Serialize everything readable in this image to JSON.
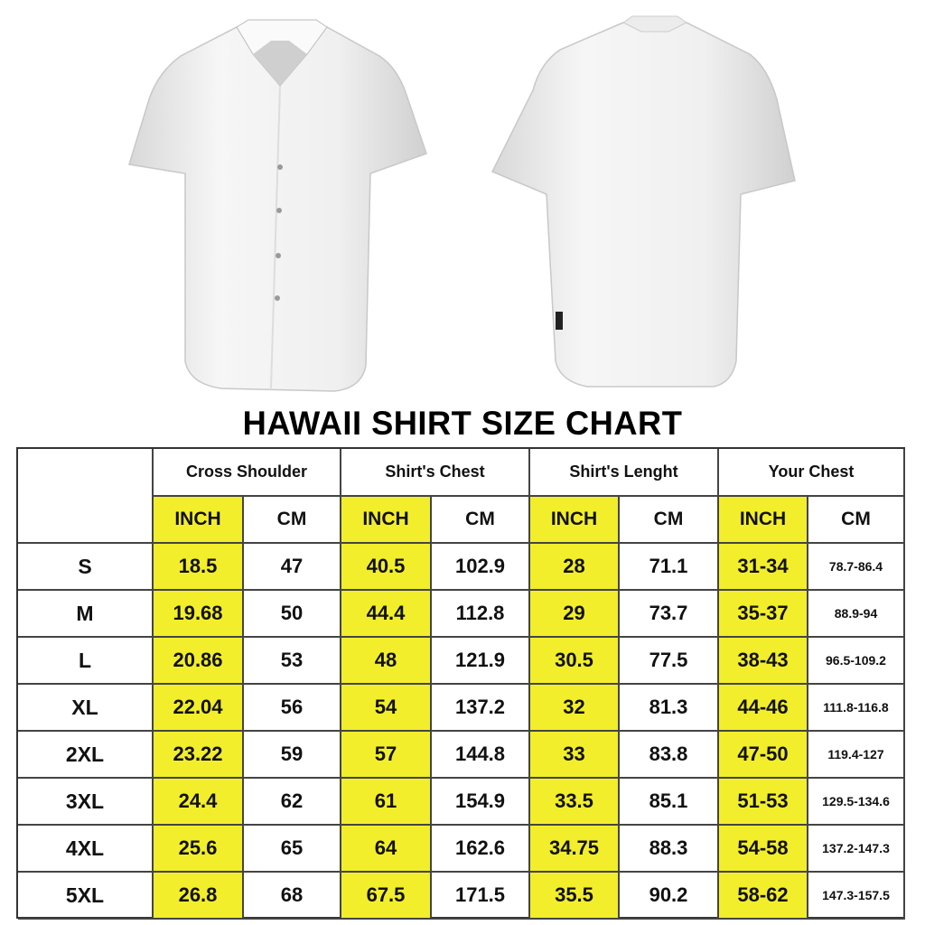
{
  "title": "HAWAII SHIRT SIZE CHART",
  "colors": {
    "inch_highlight": "#f2ee2b",
    "border": "#444444"
  },
  "images": {
    "front": "white short-sleeve shirt front",
    "back": "white short-sleeve shirt back"
  },
  "chart_data": {
    "type": "table",
    "title": "HAWAII SHIRT SIZE CHART",
    "groups": [
      "Cross Shoulder",
      "Shirt's Chest",
      "Shirt's Lenght",
      "Your Chest"
    ],
    "units": [
      "INCH",
      "CM"
    ],
    "rows": [
      {
        "size": "S",
        "values": [
          "18.5",
          "47",
          "40.5",
          "102.9",
          "28",
          "71.1",
          "31-34",
          "78.7-86.4"
        ]
      },
      {
        "size": "M",
        "values": [
          "19.68",
          "50",
          "44.4",
          "112.8",
          "29",
          "73.7",
          "35-37",
          "88.9-94"
        ]
      },
      {
        "size": "L",
        "values": [
          "20.86",
          "53",
          "48",
          "121.9",
          "30.5",
          "77.5",
          "38-43",
          "96.5-109.2"
        ]
      },
      {
        "size": "XL",
        "values": [
          "22.04",
          "56",
          "54",
          "137.2",
          "32",
          "81.3",
          "44-46",
          "111.8-116.8"
        ]
      },
      {
        "size": "2XL",
        "values": [
          "23.22",
          "59",
          "57",
          "144.8",
          "33",
          "83.8",
          "47-50",
          "119.4-127"
        ]
      },
      {
        "size": "3XL",
        "values": [
          "24.4",
          "62",
          "61",
          "154.9",
          "33.5",
          "85.1",
          "51-53",
          "129.5-134.6"
        ]
      },
      {
        "size": "4XL",
        "values": [
          "25.6",
          "65",
          "64",
          "162.6",
          "34.75",
          "88.3",
          "54-58",
          "137.2-147.3"
        ]
      },
      {
        "size": "5XL",
        "values": [
          "26.8",
          "68",
          "67.5",
          "171.5",
          "35.5",
          "90.2",
          "58-62",
          "147.3-157.5"
        ]
      }
    ]
  }
}
